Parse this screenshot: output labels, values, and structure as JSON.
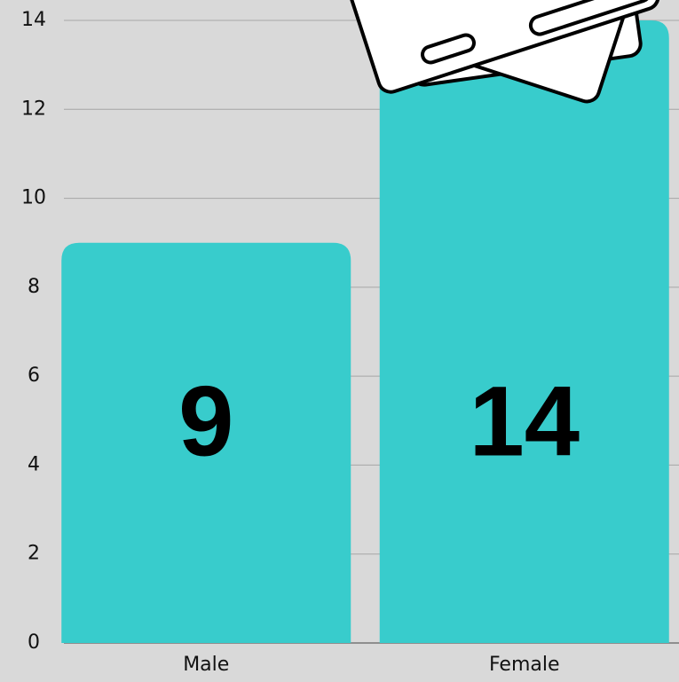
{
  "chart_data": {
    "type": "bar",
    "categories": [
      "Male",
      "Female"
    ],
    "values": [
      9,
      14
    ],
    "color": "#38cccc",
    "ylim": [
      0,
      14
    ],
    "yticks": [
      0,
      2,
      4,
      6,
      8,
      10,
      12,
      14
    ],
    "grid": true
  }
}
